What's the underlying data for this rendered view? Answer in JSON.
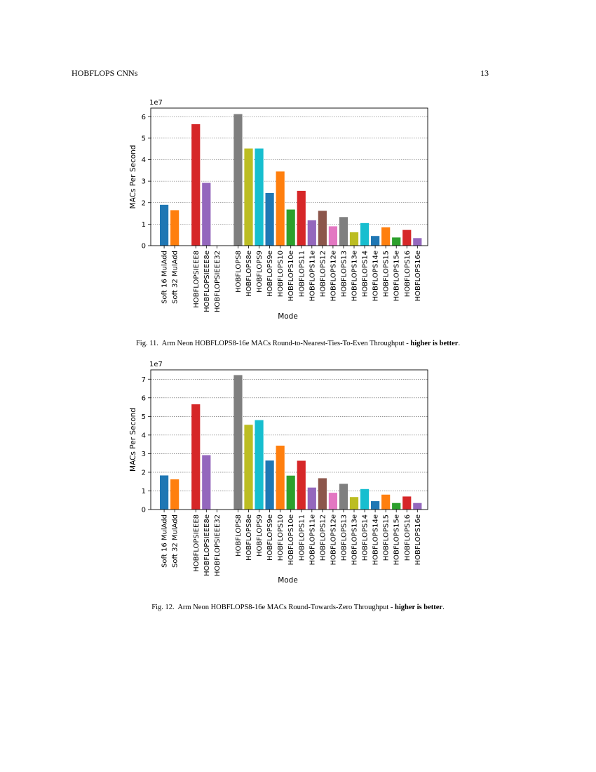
{
  "header": {
    "title": "HOBFLOPS CNNs",
    "page_number": "13"
  },
  "chart_data": [
    {
      "type": "bar",
      "title": "",
      "xlabel": "Mode",
      "ylabel": "MACs Per Second",
      "scale_label": "1e7",
      "ylim": [
        0,
        6.4
      ],
      "yticks": [
        0,
        1,
        2,
        3,
        4,
        5,
        6
      ],
      "grid": true,
      "categories": [
        "Soft 16 MulAdd",
        "Soft 32 MulAdd",
        "HOBFLOPSIEEE8",
        "HOBFLOPSIEEE8e",
        "HOBFLOPSIEEE32",
        "HOBFLOPS8",
        "HOBFLOPS8e",
        "HOBFLOPS9",
        "HOBFLOPS9e",
        "HOBFLOPS10",
        "HOBFLOPS10e",
        "HOBFLOPS11",
        "HOBFLOPS11e",
        "HOBFLOPS12",
        "HOBFLOPS12e",
        "HOBFLOPS13",
        "HOBFLOPS13e",
        "HOBFLOPS14",
        "HOBFLOPS14e",
        "HOBFLOPS15",
        "HOBFLOPS15e",
        "HOBFLOPS16",
        "HOBFLOPS16e"
      ],
      "values": [
        1.9,
        1.65,
        5.65,
        2.92,
        0,
        6.12,
        4.52,
        4.52,
        2.45,
        3.45,
        1.68,
        2.55,
        1.18,
        1.62,
        0.9,
        1.33,
        0.62,
        1.05,
        0.45,
        0.85,
        0.38,
        0.73,
        0.35
      ],
      "colors": [
        "#1f77b4",
        "#ff7f0e",
        "#d62728",
        "#9467bd",
        "#9467bd",
        "#7f7f7f",
        "#bcbd22",
        "#17becf",
        "#1f77b4",
        "#ff7f0e",
        "#2ca02c",
        "#d62728",
        "#9467bd",
        "#8c564b",
        "#e377c2",
        "#7f7f7f",
        "#bcbd22",
        "#17becf",
        "#1f77b4",
        "#ff7f0e",
        "#2ca02c",
        "#d62728",
        "#9467bd"
      ]
    },
    {
      "type": "bar",
      "title": "",
      "xlabel": "Mode",
      "ylabel": "MACs Per Second",
      "scale_label": "1e7",
      "ylim": [
        0,
        7.5
      ],
      "yticks": [
        0,
        1,
        2,
        3,
        4,
        5,
        6,
        7
      ],
      "grid": true,
      "categories": [
        "Soft 16 MulAdd",
        "Soft 32 MulAdd",
        "HOBFLOPSIEEE8",
        "HOBFLOPSIEEE8e",
        "HOBFLOPSIEEE32",
        "HOBFLOPS8",
        "HOBFLOPS8e",
        "HOBFLOPS9",
        "HOBFLOPS9e",
        "HOBFLOPS10",
        "HOBFLOPS10e",
        "HOBFLOPS11",
        "HOBFLOPS11e",
        "HOBFLOPS12",
        "HOBFLOPS12e",
        "HOBFLOPS13",
        "HOBFLOPS13e",
        "HOBFLOPS14",
        "HOBFLOPS14e",
        "HOBFLOPS15",
        "HOBFLOPS15e",
        "HOBFLOPS16",
        "HOBFLOPS16e"
      ],
      "values": [
        1.83,
        1.62,
        5.65,
        2.92,
        0,
        7.22,
        4.55,
        4.8,
        2.63,
        3.43,
        1.82,
        2.62,
        1.18,
        1.68,
        0.9,
        1.38,
        0.67,
        1.1,
        0.45,
        0.8,
        0.35,
        0.7,
        0.35
      ],
      "colors": [
        "#1f77b4",
        "#ff7f0e",
        "#d62728",
        "#9467bd",
        "#9467bd",
        "#7f7f7f",
        "#bcbd22",
        "#17becf",
        "#1f77b4",
        "#ff7f0e",
        "#2ca02c",
        "#d62728",
        "#9467bd",
        "#8c564b",
        "#e377c2",
        "#7f7f7f",
        "#bcbd22",
        "#17becf",
        "#1f77b4",
        "#ff7f0e",
        "#2ca02c",
        "#d62728",
        "#9467bd"
      ]
    }
  ],
  "captions": [
    {
      "label": "Fig. 11.",
      "text": "Arm Neon HOBFLOPS8-16e MACs Round-to-Nearest-Ties-To-Even Throughput - ",
      "emphasis": "higher is better",
      "end": "."
    },
    {
      "label": "Fig. 12.",
      "text": "Arm Neon HOBFLOPS8-16e MACs Round-Towards-Zero Throughput - ",
      "emphasis": "higher is better",
      "end": "."
    }
  ]
}
